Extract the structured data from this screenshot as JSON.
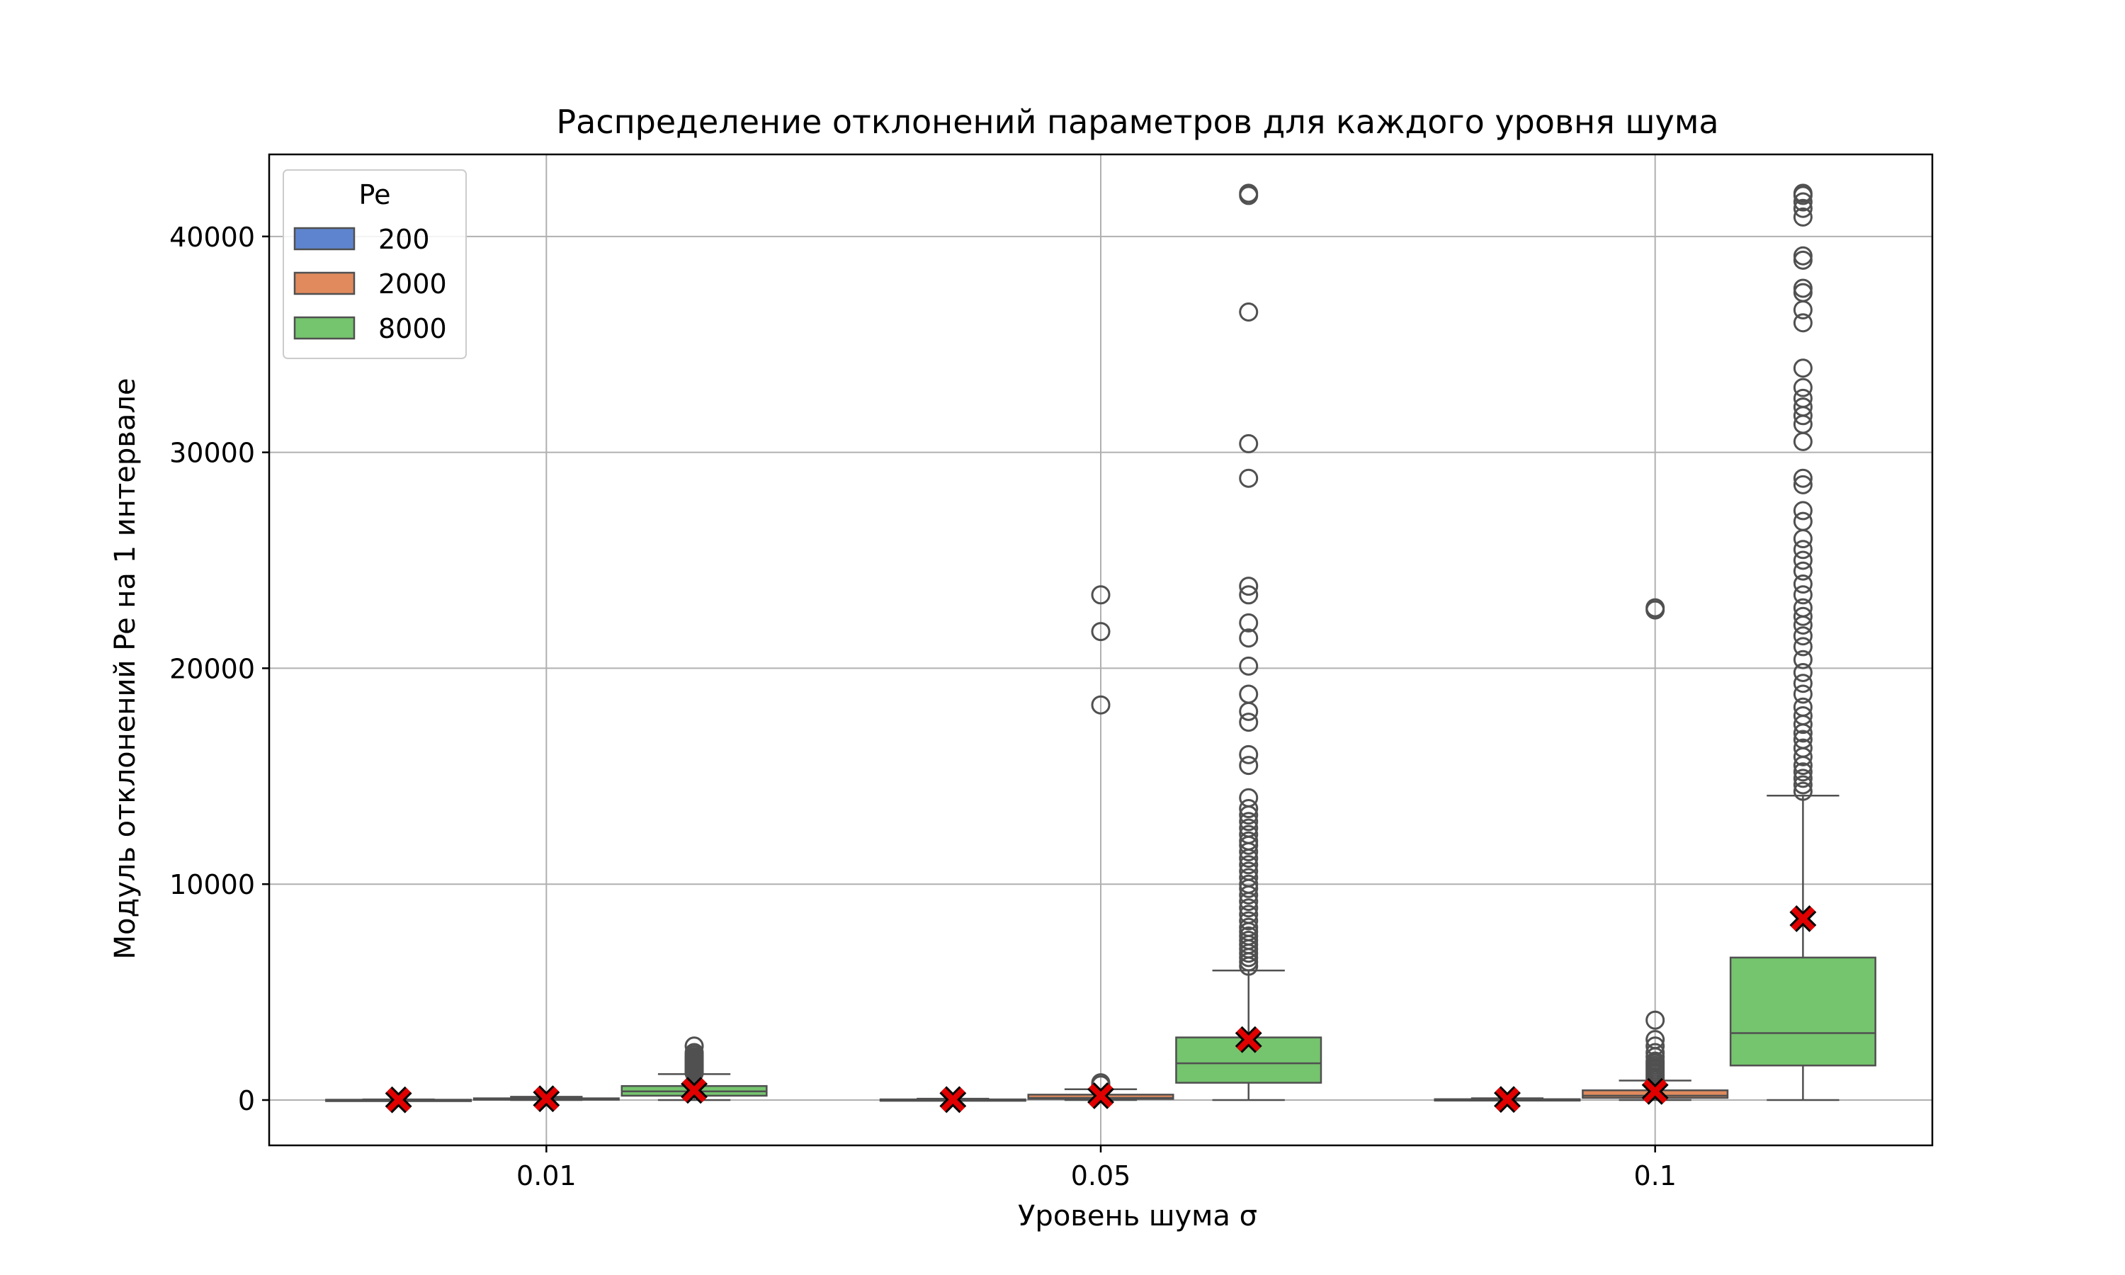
{
  "chart_data": {
    "type": "box",
    "title": "Распределение отклонений параметров для каждого уровня шума",
    "xlabel": "Уровень шума σ",
    "ylabel": "Модуль отклонений Pe на 1 интервале",
    "categories": [
      "0.01",
      "0.05",
      "0.1"
    ],
    "ylim": [
      -2100,
      43800
    ],
    "yticks": [
      0,
      10000,
      20000,
      30000,
      40000
    ],
    "grid": true,
    "legend": {
      "title": "Pe",
      "position": "top-left"
    },
    "mean_marker": {
      "shape": "x",
      "color": "#e00000"
    },
    "series": [
      {
        "name": "200",
        "color": "#5f84cf",
        "boxes": [
          {
            "q1": 0,
            "median": 5,
            "q3": 15,
            "whisker_low": 0,
            "whisker_high": 30,
            "mean": 10,
            "outliers": []
          },
          {
            "q1": 0,
            "median": 10,
            "q3": 30,
            "whisker_low": 0,
            "whisker_high": 60,
            "mean": 20,
            "outliers": []
          },
          {
            "q1": 0,
            "median": 15,
            "q3": 40,
            "whisker_low": 0,
            "whisker_high": 80,
            "mean": 25,
            "outliers": []
          }
        ]
      },
      {
        "name": "2000",
        "color": "#e08a5d",
        "boxes": [
          {
            "q1": 20,
            "median": 40,
            "q3": 80,
            "whisker_low": 0,
            "whisker_high": 150,
            "mean": 60,
            "outliers": []
          },
          {
            "q1": 50,
            "median": 100,
            "q3": 250,
            "whisker_low": 0,
            "whisker_high": 500,
            "mean": 200,
            "outliers": [
              700,
              800,
              18300,
              21700,
              23400
            ]
          },
          {
            "q1": 100,
            "median": 200,
            "q3": 450,
            "whisker_low": 0,
            "whisker_high": 900,
            "mean": 400,
            "outliers": [
              1000,
              1100,
              1200,
              1300,
              1400,
              1500,
              1600,
              1700,
              1800,
              2000,
              2200,
              2500,
              2800,
              3700,
              22700,
              22800
            ]
          }
        ]
      },
      {
        "name": "8000",
        "color": "#75c46e",
        "boxes": [
          {
            "q1": 200,
            "median": 400,
            "q3": 650,
            "whisker_low": 0,
            "whisker_high": 1200,
            "mean": 450,
            "outliers": [
              1250,
              1300,
              1350,
              1400,
              1450,
              1500,
              1550,
              1600,
              1650,
              1700,
              1750,
              1800,
              1850,
              1900,
              1950,
              2000,
              2100,
              2200,
              2500
            ]
          },
          {
            "q1": 800,
            "median": 1700,
            "q3": 2900,
            "whisker_low": 0,
            "whisker_high": 6000,
            "mean": 2800,
            "outliers": [
              6200,
              6400,
              6600,
              6800,
              7000,
              7200,
              7400,
              7600,
              7800,
              8000,
              8300,
              8600,
              8900,
              9200,
              9500,
              9800,
              10000,
              10300,
              10600,
              10900,
              11200,
              11500,
              11800,
              12000,
              12300,
              12600,
              12900,
              13200,
              13500,
              14000,
              15500,
              16000,
              17500,
              18000,
              18800,
              20100,
              21400,
              22100,
              23400,
              23800,
              28800,
              30400,
              36500,
              41900,
              42000
            ]
          },
          {
            "q1": 1600,
            "median": 3100,
            "q3": 6600,
            "whisker_low": 0,
            "whisker_high": 14100,
            "mean": 8400,
            "outliers": [
              14300,
              14600,
              14900,
              15200,
              15500,
              15900,
              16300,
              16700,
              17000,
              17400,
              17800,
              18200,
              18800,
              19300,
              19800,
              20400,
              21000,
              21500,
              22000,
              22400,
              22800,
              23400,
              23900,
              24500,
              25000,
              25500,
              26000,
              26800,
              27300,
              28500,
              28800,
              30500,
              31300,
              31700,
              32100,
              32500,
              33000,
              33900,
              36000,
              36600,
              37400,
              37600,
              38900,
              39100,
              40900,
              41300,
              41600,
              41900,
              42000
            ]
          }
        ]
      }
    ]
  }
}
